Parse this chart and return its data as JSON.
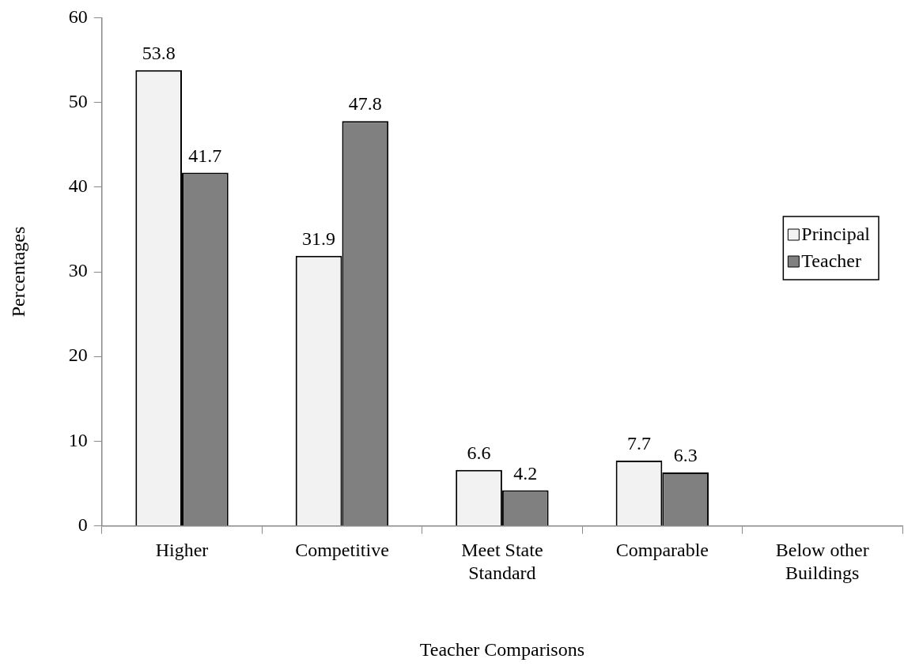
{
  "chart_data": {
    "type": "bar",
    "xlabel": "Teacher Comparisons",
    "ylabel": "Percentages",
    "categories": [
      "Higher",
      "Competitive",
      "Meet State Standard",
      "Comparable",
      "Below other Buildings"
    ],
    "series": [
      {
        "name": "Principal",
        "color": "#f2f2f2",
        "values": [
          53.8,
          31.9,
          6.6,
          7.7,
          null
        ]
      },
      {
        "name": "Teacher",
        "color": "#808080",
        "values": [
          41.7,
          47.8,
          4.2,
          6.3,
          null
        ]
      }
    ],
    "ylim": [
      0,
      60
    ],
    "yticks": [
      0,
      10,
      20,
      30,
      40,
      50,
      60
    ],
    "grid": false,
    "legend": "right",
    "data_labels": true
  }
}
